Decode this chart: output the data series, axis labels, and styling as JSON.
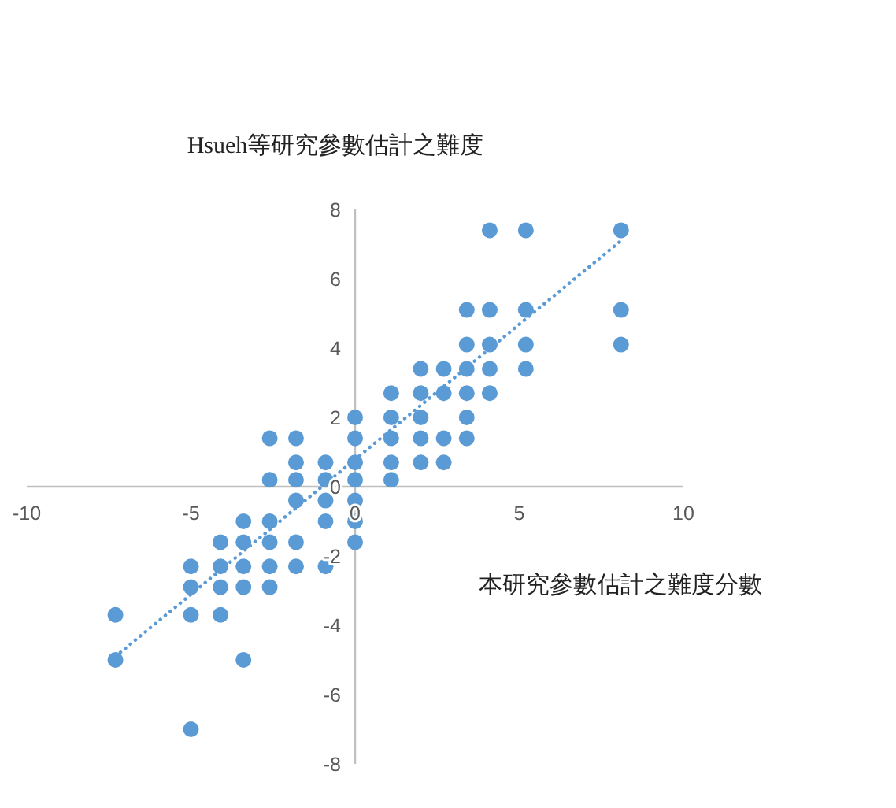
{
  "chart_data": {
    "type": "scatter",
    "title": "Hsueh等研究參數估計之難度",
    "xlabel": "本研究參數估計之難度分數",
    "xlim": [
      -10,
      10
    ],
    "ylim": [
      -8,
      8
    ],
    "xticks": [
      -10,
      -5,
      0,
      5,
      10
    ],
    "yticks": [
      -8,
      -6,
      -4,
      -2,
      0,
      2,
      4,
      6,
      8
    ],
    "marker": "circle",
    "series": [
      {
        "color": "#5b9bd5",
        "x": [
          4.1,
          5.2,
          8.1,
          3.4,
          4.1,
          5.2,
          8.1,
          3.4,
          4.1,
          5.2,
          8.1,
          2.0,
          2.7,
          3.4,
          4.1,
          5.2,
          1.1,
          2.0,
          2.7,
          3.4,
          4.1,
          0.0,
          1.1,
          2.0,
          3.4,
          -2.6,
          -1.8,
          0.0,
          1.1,
          2.0,
          2.7,
          3.4,
          -1.8,
          -0.9,
          0.0,
          1.1,
          2.0,
          2.7,
          -2.6,
          -1.8,
          -0.9,
          0.0,
          1.1,
          -1.8,
          -0.9,
          0.0,
          -3.4,
          -2.6,
          -0.9,
          0.0,
          -4.1,
          -3.4,
          -2.6,
          -1.8,
          0.0,
          -5.0,
          -4.1,
          -3.4,
          -2.6,
          -1.8,
          -0.9,
          -5.0,
          -4.1,
          -3.4,
          -2.6,
          -7.3,
          -5.0,
          -4.1,
          -7.3,
          -3.4,
          -5.0
        ],
        "values": [
          7.4,
          7.4,
          7.4,
          5.1,
          5.1,
          5.1,
          5.1,
          4.1,
          4.1,
          4.1,
          4.1,
          3.4,
          3.4,
          3.4,
          3.4,
          3.4,
          2.7,
          2.7,
          2.7,
          2.7,
          2.7,
          2.0,
          2.0,
          2.0,
          2.0,
          1.4,
          1.4,
          1.4,
          1.4,
          1.4,
          1.4,
          1.4,
          0.7,
          0.7,
          0.7,
          0.7,
          0.7,
          0.7,
          0.2,
          0.2,
          0.2,
          0.2,
          0.2,
          -0.4,
          -0.4,
          -0.4,
          -1.0,
          -1.0,
          -1.0,
          -1.0,
          -1.6,
          -1.6,
          -1.6,
          -1.6,
          -1.6,
          -2.3,
          -2.3,
          -2.3,
          -2.3,
          -2.3,
          -2.3,
          -2.9,
          -2.9,
          -2.9,
          -2.9,
          -3.7,
          -3.7,
          -3.7,
          -5.0,
          -5.0,
          -7.0
        ]
      },
      {
        "type": "line",
        "color": "#5b9bd5",
        "line_style": "dotted",
        "marker": "none",
        "x": [
          -7.3,
          8.1
        ],
        "values": [
          -4.9,
          7.1
        ]
      }
    ]
  }
}
